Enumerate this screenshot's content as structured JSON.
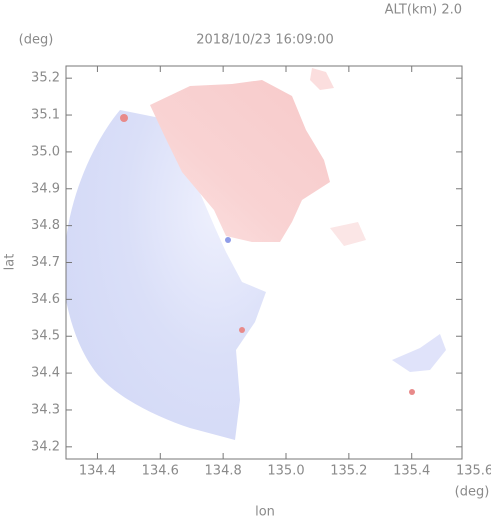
{
  "chart_data": {
    "type": "map",
    "title": "2018/10/23 16:09:00",
    "annotation": "ALT(km) 2.0",
    "x_label": "lon",
    "y_label": "lat",
    "x_unit": "(deg)",
    "y_unit": "(deg)",
    "xlim": [
      134.3,
      135.56
    ],
    "xticks": [
      134.4,
      134.6,
      134.8,
      {
        "value": 135,
        "label": "135.0"
      },
      135.2,
      135.4,
      135.6
    ],
    "ylim": [
      34.167,
      35.233
    ],
    "yticks": [
      34.2,
      34.3,
      34.4,
      34.5,
      34.6,
      34.7,
      34.8,
      34.9,
      {
        "value": 35,
        "label": "35.0"
      },
      35.1,
      35.2
    ]
  }
}
